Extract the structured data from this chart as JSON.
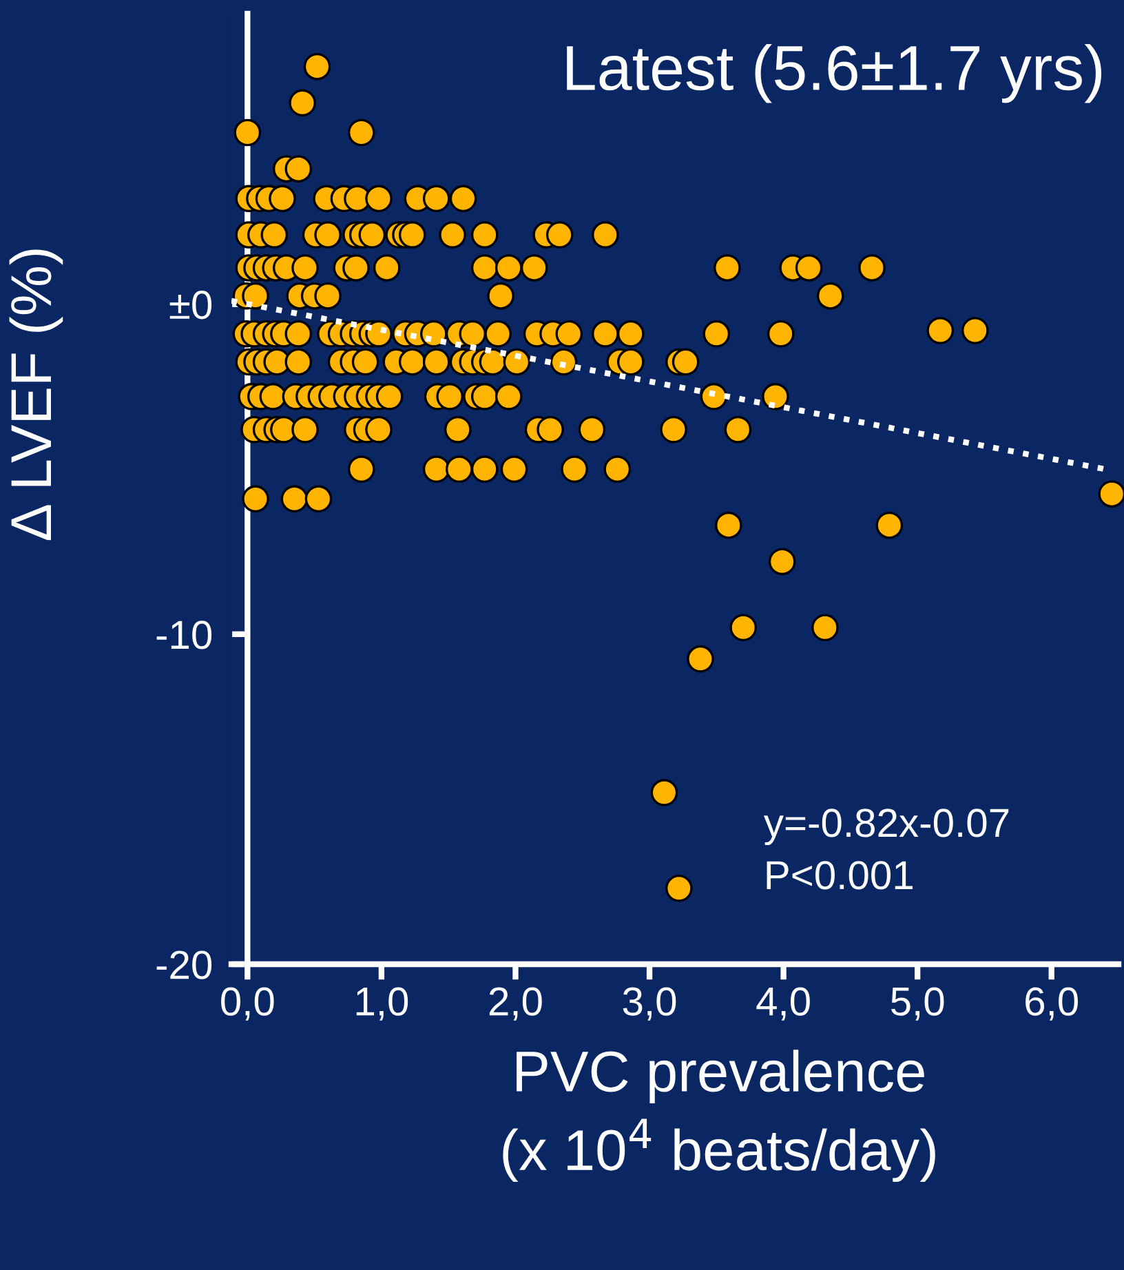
{
  "chart_data": {
    "type": "scatter",
    "title": "Latest (5.6±1.7 yrs)",
    "xlabel": "PVC prevalence\n(x 10$^{4}$ beats/day)",
    "ylabel": "Δ LVEF (%)",
    "annotations": [
      "y=-0.82x-0.07",
      "P<0.001"
    ],
    "xlim": [
      -0.12,
      6.5
    ],
    "ylim": [
      -20,
      8.8
    ],
    "xticks": [
      {
        "value": 0,
        "label": "0,0"
      },
      {
        "value": 1,
        "label": "1,0"
      },
      {
        "value": 2,
        "label": "2,0"
      },
      {
        "value": 3,
        "label": "3,0"
      },
      {
        "value": 4,
        "label": "4,0"
      },
      {
        "value": 5,
        "label": "5,0"
      },
      {
        "value": 6,
        "label": "6,0"
      }
    ],
    "yticks": [
      -20,
      -10,
      {
        "value": 0,
        "label": "±0"
      }
    ],
    "grid": false,
    "legend": false,
    "marker": "circle",
    "series": [
      {
        "color": "#ffb400",
        "x": [
          0.52,
          0.41,
          0.0,
          0.85,
          0.29,
          0.38,
          0.01,
          0.09,
          0.16,
          0.26,
          0.59,
          0.72,
          0.82,
          0.98,
          1.27,
          1.41,
          1.61,
          0.01,
          0.1,
          0.2,
          0.51,
          0.6,
          0.81,
          0.86,
          0.93,
          1.13,
          1.18,
          1.23,
          1.53,
          1.77,
          2.23,
          2.33,
          2.67,
          0.01,
          0.07,
          0.14,
          0.21,
          0.29,
          0.43,
          0.74,
          0.81,
          1.04,
          1.77,
          1.95,
          2.14,
          3.58,
          4.07,
          4.19,
          4.66,
          -0.01,
          0.06,
          0.39,
          0.5,
          0.6,
          1.89,
          4.35,
          -0.01,
          0.05,
          0.14,
          0.21,
          0.27,
          0.38,
          0.62,
          0.7,
          0.79,
          0.86,
          0.93,
          0.98,
          1.18,
          1.27,
          1.39,
          1.58,
          1.68,
          1.87,
          2.16,
          2.28,
          2.4,
          2.67,
          2.86,
          3.5,
          3.98,
          5.17,
          5.43,
          0.01,
          0.07,
          0.14,
          0.22,
          0.38,
          0.7,
          0.79,
          0.88,
          1.11,
          1.23,
          1.41,
          1.61,
          1.68,
          1.77,
          1.83,
          2.01,
          2.36,
          2.78,
          2.86,
          3.22,
          3.27,
          0.03,
          0.1,
          0.19,
          0.36,
          0.46,
          0.55,
          0.63,
          0.74,
          0.82,
          0.91,
          0.98,
          1.06,
          1.42,
          1.51,
          1.71,
          1.77,
          1.95,
          3.48,
          3.94,
          0.05,
          0.14,
          0.22,
          0.27,
          0.43,
          0.82,
          0.89,
          0.98,
          1.57,
          2.17,
          2.26,
          2.57,
          3.18,
          3.66,
          0.85,
          1.41,
          1.58,
          1.77,
          1.99,
          2.44,
          2.76,
          0.06,
          0.35,
          0.53,
          6.45,
          3.59,
          4.79,
          3.99,
          3.7,
          4.31,
          3.38,
          3.11,
          3.22
        ],
        "values": [
          7.2,
          6.1,
          5.2,
          5.2,
          4.1,
          4.1,
          3.2,
          3.2,
          3.2,
          3.2,
          3.2,
          3.2,
          3.2,
          3.2,
          3.2,
          3.2,
          3.2,
          2.1,
          2.1,
          2.1,
          2.1,
          2.1,
          2.1,
          2.1,
          2.1,
          2.1,
          2.1,
          2.1,
          2.1,
          2.1,
          2.1,
          2.1,
          2.1,
          1.1,
          1.1,
          1.1,
          1.1,
          1.1,
          1.1,
          1.1,
          1.1,
          1.1,
          1.1,
          1.1,
          1.1,
          1.1,
          1.1,
          1.1,
          1.1,
          0.25,
          0.25,
          0.25,
          0.25,
          0.25,
          0.25,
          0.25,
          -0.9,
          -0.9,
          -0.9,
          -0.9,
          -0.9,
          -0.9,
          -0.9,
          -0.9,
          -0.9,
          -0.9,
          -0.9,
          -0.9,
          -0.9,
          -0.9,
          -0.9,
          -0.9,
          -0.9,
          -0.9,
          -0.9,
          -0.9,
          -0.9,
          -0.9,
          -0.9,
          -0.9,
          -0.9,
          -0.8,
          -0.8,
          -1.75,
          -1.75,
          -1.75,
          -1.75,
          -1.75,
          -1.75,
          -1.75,
          -1.75,
          -1.75,
          -1.75,
          -1.75,
          -1.75,
          -1.75,
          -1.75,
          -1.75,
          -1.75,
          -1.75,
          -1.75,
          -1.75,
          -1.75,
          -1.75,
          -2.8,
          -2.8,
          -2.8,
          -2.8,
          -2.8,
          -2.8,
          -2.8,
          -2.8,
          -2.8,
          -2.8,
          -2.8,
          -2.8,
          -2.8,
          -2.8,
          -2.8,
          -2.8,
          -2.8,
          -2.8,
          -2.8,
          -3.8,
          -3.8,
          -3.8,
          -3.8,
          -3.8,
          -3.8,
          -3.8,
          -3.8,
          -3.8,
          -3.8,
          -3.8,
          -3.8,
          -3.8,
          -3.8,
          -5.0,
          -5.0,
          -5.0,
          -5.0,
          -5.0,
          -5.0,
          -5.0,
          -5.9,
          -5.9,
          -5.9,
          -5.75,
          -6.7,
          -6.7,
          -7.8,
          -9.8,
          -9.8,
          -10.75,
          -14.8,
          -17.7
        ]
      },
      {
        "type": "line",
        "color": "#ffffff",
        "line_style": "dotted",
        "marker": "none",
        "x": [
          -0.12,
          6.4
        ],
        "values": [
          0.1,
          -5.0
        ]
      }
    ]
  }
}
